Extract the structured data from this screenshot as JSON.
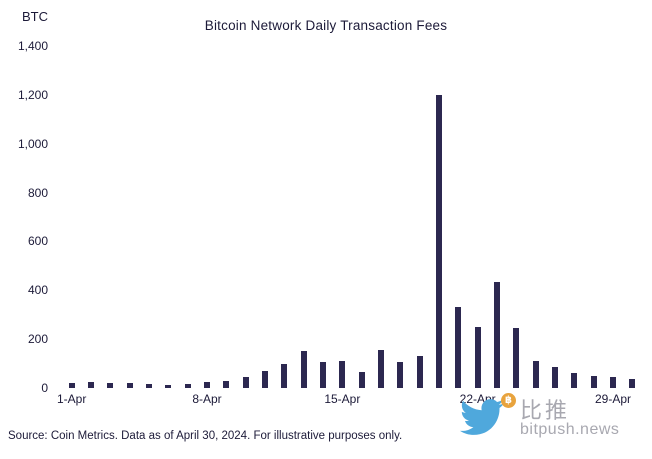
{
  "title": "Bitcoin Network Daily Transaction Fees",
  "y_axis_unit": "BTC",
  "footer": "Source: Coin Metrics. Data as of April 30, 2024. For illustrative purposes only.",
  "watermark": {
    "cn": "比推",
    "domain": "bitpush.news",
    "btc_symbol": "฿"
  },
  "colors": {
    "bar": "#2c2850",
    "text": "#1c1a38",
    "watermark_blue": "#4fa8dc",
    "watermark_gray": "#a8a8b0",
    "btc_gold": "#e8a33d"
  },
  "chart_data": {
    "type": "bar",
    "title": "Bitcoin Network Daily Transaction Fees",
    "xlabel": "",
    "ylabel": "BTC",
    "ylim": [
      0,
      1400
    ],
    "grid": false,
    "legend": "none",
    "yticks": [
      "0",
      "200",
      "400",
      "600",
      "800",
      "1,000",
      "1,200",
      "1,400"
    ],
    "categories": [
      "1-Apr",
      "2-Apr",
      "3-Apr",
      "4-Apr",
      "5-Apr",
      "6-Apr",
      "7-Apr",
      "8-Apr",
      "9-Apr",
      "10-Apr",
      "11-Apr",
      "12-Apr",
      "13-Apr",
      "14-Apr",
      "15-Apr",
      "16-Apr",
      "17-Apr",
      "18-Apr",
      "19-Apr",
      "20-Apr",
      "21-Apr",
      "22-Apr",
      "23-Apr",
      "24-Apr",
      "25-Apr",
      "26-Apr",
      "27-Apr",
      "28-Apr",
      "29-Apr",
      "30-Apr"
    ],
    "values": [
      20,
      25,
      22,
      20,
      15,
      14,
      18,
      25,
      30,
      45,
      70,
      100,
      150,
      105,
      110,
      65,
      155,
      105,
      130,
      1200,
      330,
      250,
      435,
      245,
      110,
      85,
      60,
      50,
      45,
      35
    ],
    "x_tick_labels": [
      "1-Apr",
      "8-Apr",
      "15-Apr",
      "22-Apr",
      "29-Apr"
    ],
    "x_tick_indices": [
      0,
      7,
      14,
      21,
      28
    ]
  }
}
